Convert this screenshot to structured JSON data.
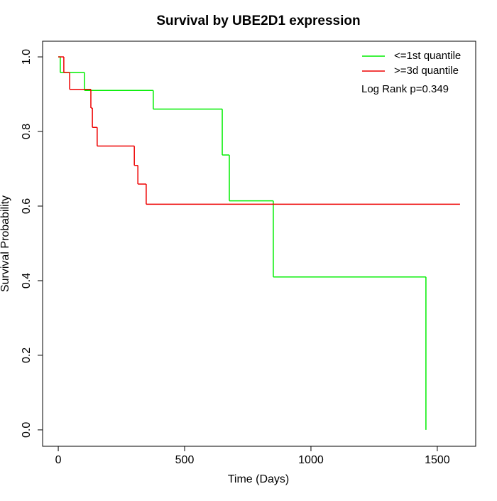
{
  "chart_data": {
    "type": "step",
    "title": "Survival by UBE2D1 expression",
    "xlabel": "Time (Days)",
    "ylabel": "Survival Probability",
    "annotation": "Log Rank p=0.349",
    "xlim": [
      -62,
      1652
    ],
    "ylim": [
      -0.044,
      1.042
    ],
    "xticks": [
      0,
      500,
      1000,
      1500
    ],
    "yticks": [
      {
        "value": 0,
        "label": "0.0"
      },
      0.2,
      0.4,
      0.6,
      0.8,
      {
        "value": 1,
        "label": "1.0"
      }
    ],
    "grid": false,
    "legend": "top-right",
    "series": [
      {
        "name": "<=1st quantile",
        "color": "#00ee00",
        "x": [
          0,
          8,
          104,
          376,
          649,
          677,
          851,
          1455
        ],
        "values": [
          1,
          0.958,
          0.91,
          0.86,
          0.737,
          0.614,
          0.41,
          0
        ]
      },
      {
        "name": ">=3d quantile",
        "color": "#ee0000",
        "x": [
          0,
          22,
          45,
          129,
          135,
          154,
          301,
          315,
          348,
          1590
        ],
        "values": [
          1,
          0.958,
          0.913,
          0.863,
          0.811,
          0.761,
          0.709,
          0.659,
          0.605,
          0.605
        ]
      }
    ]
  }
}
